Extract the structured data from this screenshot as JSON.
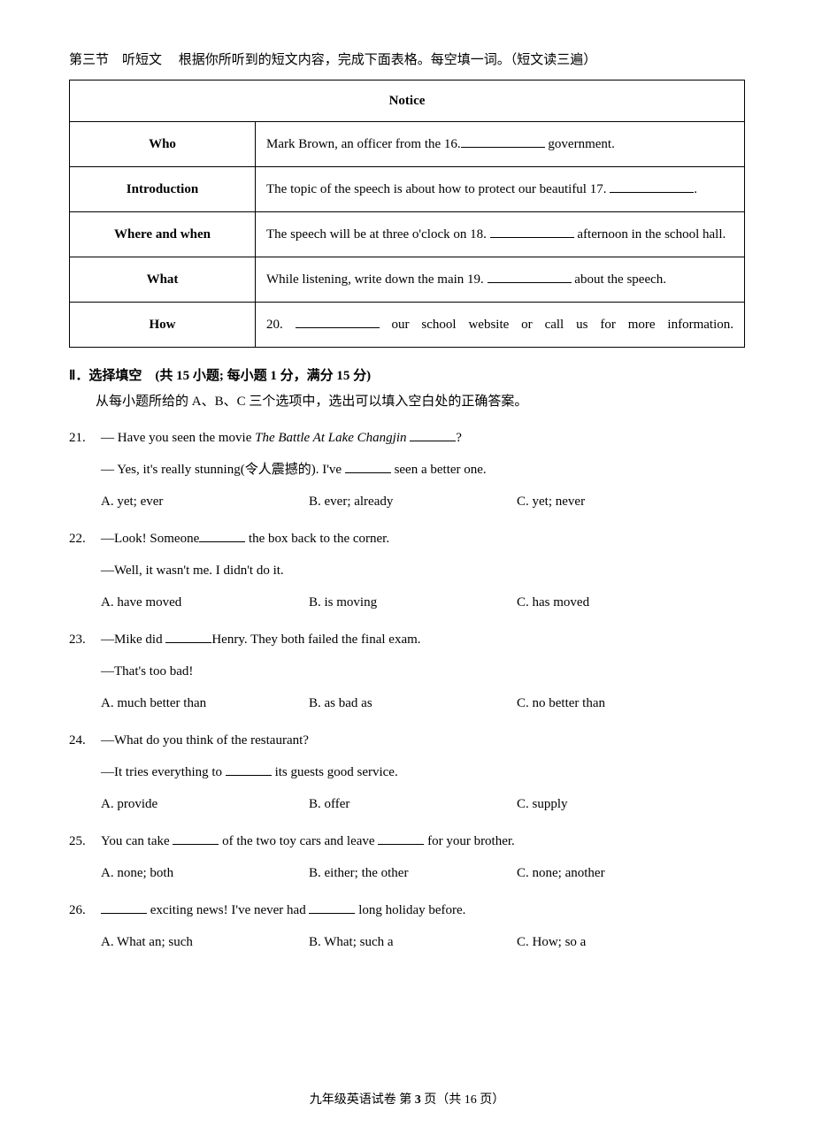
{
  "section3": {
    "intro": "第三节　听短文　 根据你所听到的短文内容，完成下面表格。每空填一词。（短文读三遍）"
  },
  "notice_table": {
    "title": "Notice",
    "rows": [
      {
        "label": "Who",
        "pre": "Mark Brown, an officer from the 16.",
        "post": " government."
      },
      {
        "label": "Introduction",
        "pre": "The topic of the speech is about how to protect our beautiful 17. ",
        "post": "."
      },
      {
        "label": "Where and when",
        "pre": "The speech will be at three o'clock on 18. ",
        "post": " afternoon in the school hall."
      },
      {
        "label": "What",
        "pre": "While listening, write down the main 19. ",
        "post": " about the speech."
      },
      {
        "label": "How",
        "pre": "20. ",
        "post": " our school website or call us for more information."
      }
    ]
  },
  "section2_heading": "Ⅱ．选择填空　(共 15 小题;  每小题 1 分，满分 15 分)",
  "section2_sub": "从每小题所给的 A、B、C 三个选项中，选出可以填入空白处的正确答案。",
  "questions": [
    {
      "num": "21.",
      "lines": [
        "— Have you seen the movie <i>The Battle At Lake Changjin</i> ______?",
        "— Yes, it's really stunning(令人震撼的). I've ______ seen a better one."
      ],
      "opts": {
        "a": "A. yet; ever",
        "b": "B. ever; already",
        "c": "C. yet; never"
      }
    },
    {
      "num": "22.",
      "lines": [
        "—Look! Someone______ the box back to the corner.",
        "—Well, it wasn't me. I didn't do it."
      ],
      "opts": {
        "a": "A. have moved",
        "b": "B. is moving",
        "c": "C. has moved"
      }
    },
    {
      "num": "23.",
      "lines": [
        "—Mike did ______Henry. They both failed the final exam.",
        "—That's too bad!"
      ],
      "opts": {
        "a": "A. much better than",
        "b": "B. as bad as",
        "c": "C. no better than"
      }
    },
    {
      "num": "24.",
      "lines": [
        "—What do you think of the restaurant?",
        "—It tries everything to ______ its guests good service."
      ],
      "opts": {
        "a": "A. provide",
        "b": "B. offer",
        "c": "C. supply"
      }
    },
    {
      "num": "25.",
      "lines": [
        "You can take ______ of the two toy cars and leave ______ for your brother."
      ],
      "opts": {
        "a": "A. none; both",
        "b": "B. either; the other",
        "c": "C. none; another"
      }
    },
    {
      "num": "26.",
      "lines": [
        "______ exciting news! I've never had _______ long holiday before."
      ],
      "opts": {
        "a": "A. What an; such",
        "b": "B. What; such a",
        "c": "C. How; so a"
      }
    }
  ],
  "footer": {
    "text_pre": "九年级英语试卷 第 ",
    "page_current": "3",
    "text_post": " 页（共 16 页）"
  }
}
